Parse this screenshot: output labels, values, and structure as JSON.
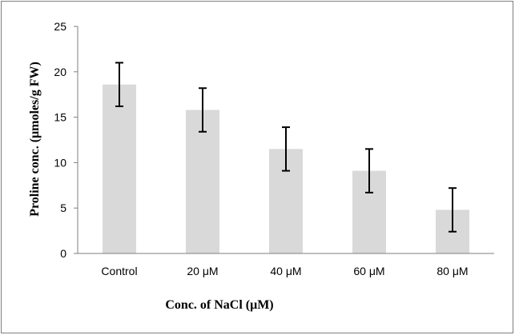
{
  "chart_data": {
    "type": "bar",
    "title": "",
    "xlabel": "Conc. of NaCl (μM)",
    "ylabel": "Proline conc. (μmoles/g FW)",
    "categories": [
      "Control",
      "20 μM",
      "40 μM",
      "60 μM",
      "80 μM"
    ],
    "values": [
      18.6,
      15.8,
      11.5,
      9.1,
      4.8
    ],
    "error": [
      2.4,
      2.4,
      2.4,
      2.4,
      2.4
    ],
    "ylim": [
      0,
      25
    ],
    "yticks": [
      0,
      5,
      10,
      15,
      20,
      25
    ],
    "ytick_labels": [
      "0",
      "5",
      "10",
      "15",
      "20",
      "25"
    ],
    "grid": false,
    "legend": "none",
    "bar_color": "#d9d9d9",
    "error_bar_color": "#000000"
  }
}
